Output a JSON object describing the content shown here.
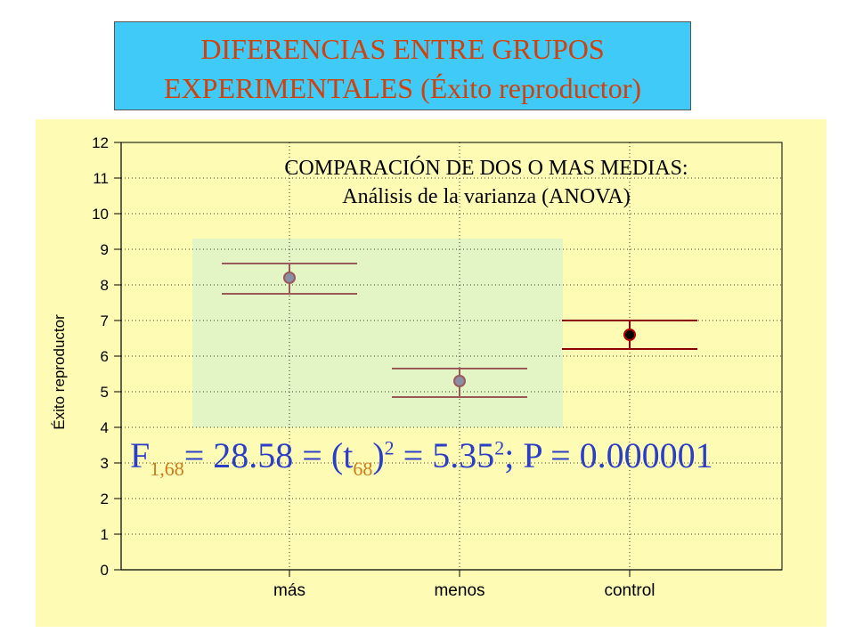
{
  "slide": {
    "title_line1": "DIFERENCIAS ENTRE GRUPOS",
    "title_line2": "EXPERIMENTALES (Éxito reproductor)"
  },
  "stat": {
    "f_letter": "F",
    "f_sub": "1,68",
    "eq1": "= 28.58 = (t",
    "t_sub": "68",
    "close": ")",
    "sq1": "2",
    "eq2": " = 5.35",
    "sq2": "2",
    "tail": "; P = 0.000001"
  },
  "colors": {
    "title_bg": "#3fcaf7",
    "title_text": "#d1410c",
    "plot_bg": "#fdfbb4",
    "highlight_bg": "#e3f4c5",
    "group_line": "#9a5a5a",
    "control_line": "#8b0000",
    "stat_blue": "#2b3ec8",
    "stat_orange": "#d07a1a"
  },
  "chart_data": {
    "type": "scatter",
    "title": "COMPARACIÓN DE DOS O MAS MEDIAS:",
    "subtitle": "Análisis de la varianza (ANOVA)",
    "ylabel": "Éxito reproductor",
    "xlabel": "",
    "categories": [
      "más",
      "menos",
      "control"
    ],
    "ylim": [
      0,
      12
    ],
    "yticks": [
      0,
      1,
      2,
      3,
      4,
      5,
      6,
      7,
      8,
      9,
      10,
      11,
      12
    ],
    "grid": true,
    "points": [
      {
        "category": "más",
        "mean": 8.2,
        "upper": 8.6,
        "lower": 7.75
      },
      {
        "category": "menos",
        "mean": 5.3,
        "upper": 5.65,
        "lower": 4.85
      },
      {
        "category": "control",
        "mean": 6.6,
        "upper": 7.0,
        "lower": 6.2
      }
    ]
  }
}
